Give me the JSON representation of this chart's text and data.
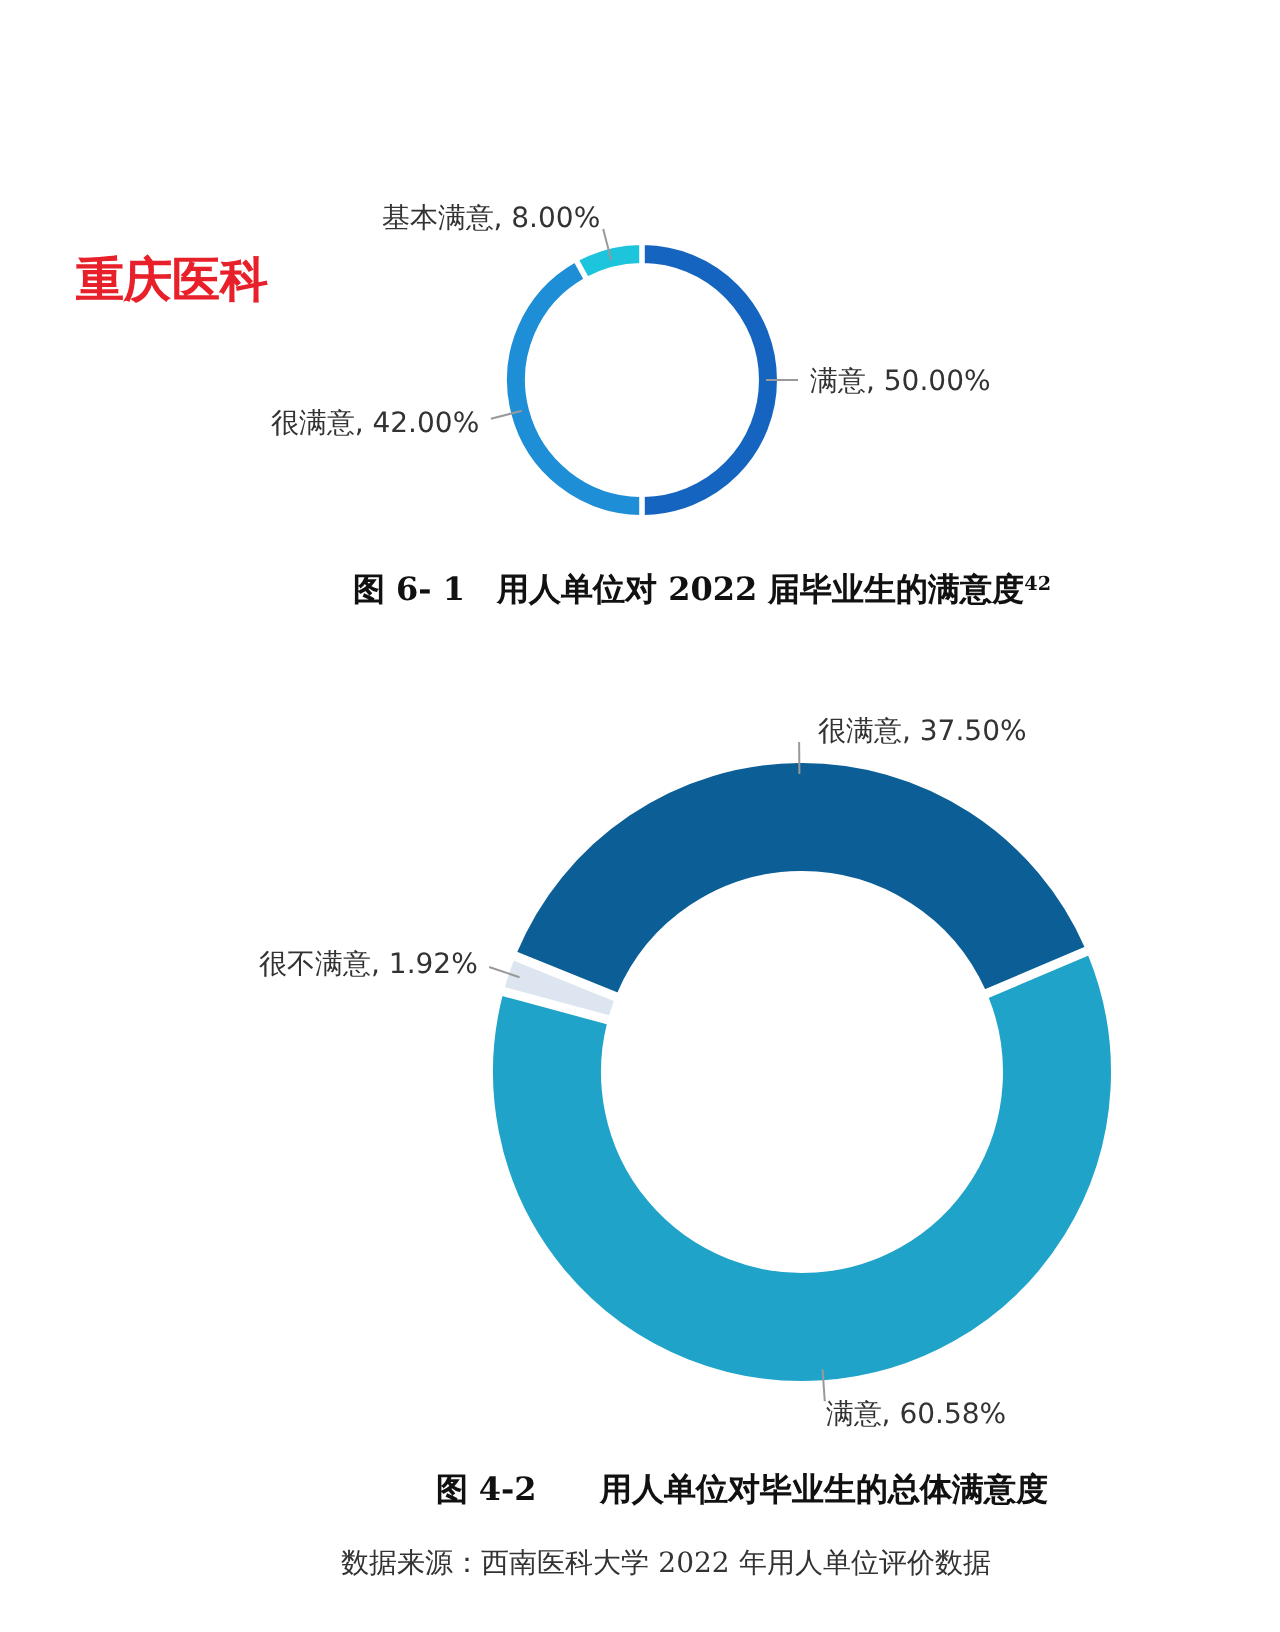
{
  "chart_data": [
    {
      "type": "donut",
      "title": "图 6- 1　用人单位对 2022 届毕业生的满意度$^{42}$",
      "categories": [
        "满意",
        "很满意",
        "基本满意"
      ],
      "values": [
        50,
        42,
        8
      ],
      "colors": [
        "#1565c0",
        "#1e8fd6",
        "#1cc4dc"
      ],
      "value_labels": [
        "50.00%",
        "42.00%",
        "8.00%"
      ],
      "annotations": [
        "重庆医科"
      ]
    },
    {
      "type": "donut",
      "title": "图 4-2　　用人单位对毕业生的总体满意度",
      "categories": [
        "很满意",
        "满意",
        "很不满意"
      ],
      "values": [
        37.5,
        60.58,
        1.92
      ],
      "colors": [
        "#0b5f96",
        "#20a3c8",
        "#dde6f0"
      ],
      "value_labels": [
        "37.50%",
        "60.58%",
        "1.92%"
      ],
      "annotations": [
        "数据来源：西南医科大学 2022 年用人单位评价数据"
      ]
    }
  ]
}
